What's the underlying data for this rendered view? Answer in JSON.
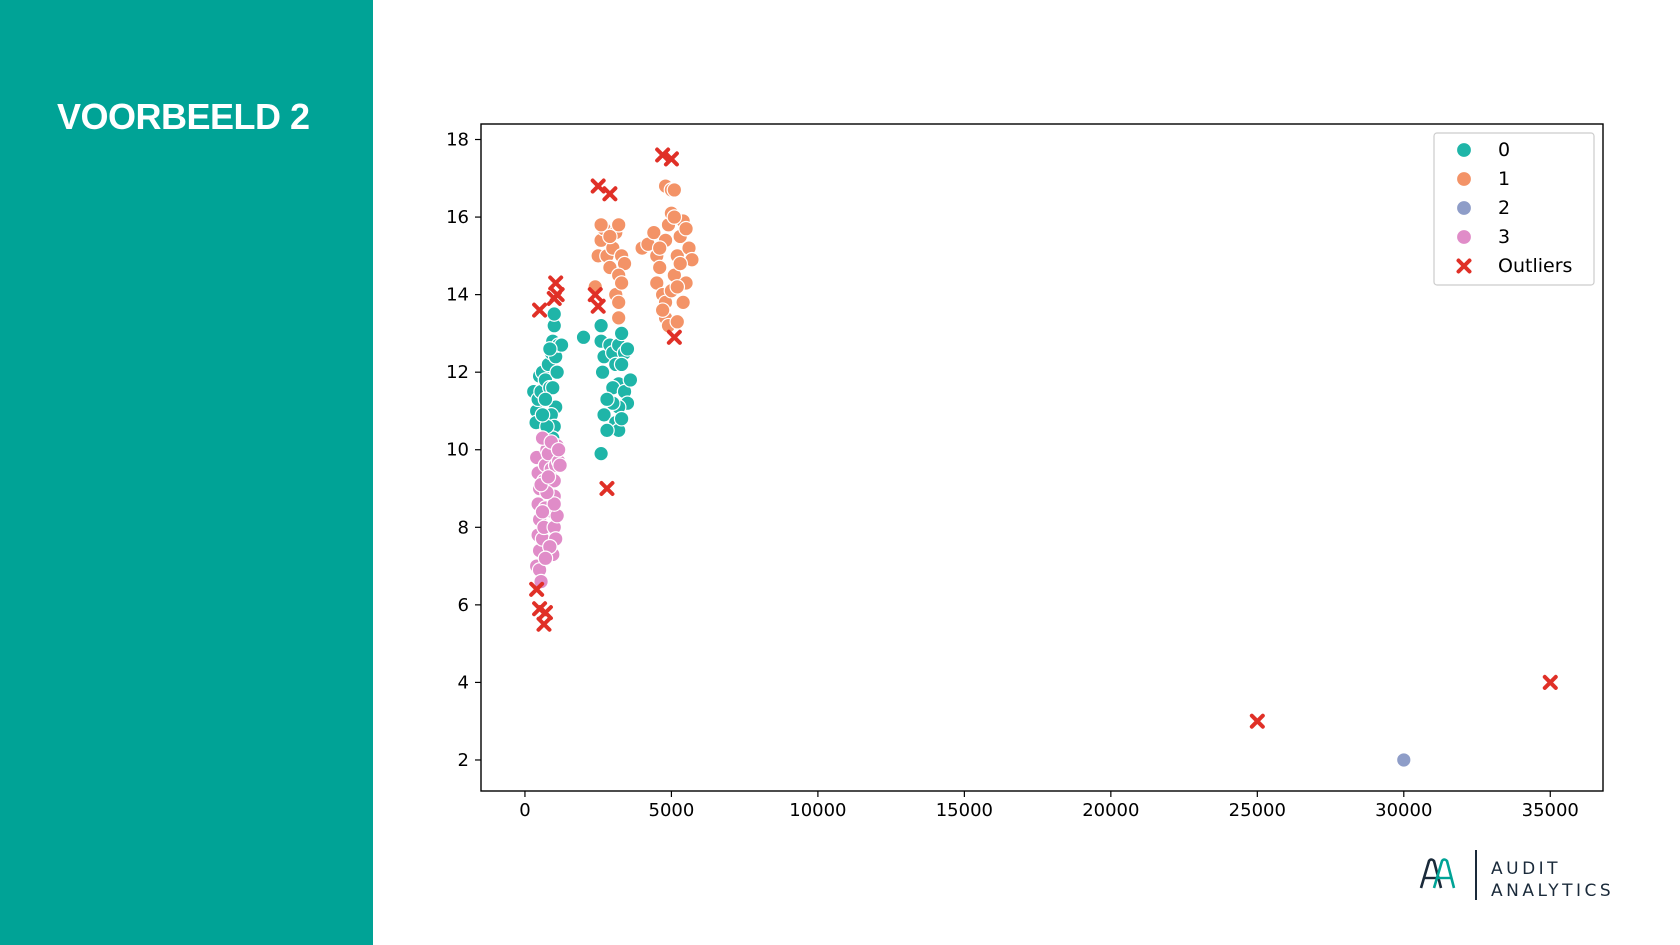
{
  "slide": {
    "title": "VOORBEELD 2"
  },
  "logo": {
    "line1": "AUDIT",
    "line2": "ANALYTICS",
    "colors": {
      "dark": "#1a2a3a",
      "accent": "#00a396"
    }
  },
  "colors": {
    "sidebar": "#00a396",
    "cluster_0": "#1fb5a8",
    "cluster_1": "#f39367",
    "cluster_2": "#8e9dc8",
    "cluster_3": "#e08cc8",
    "outliers": "#e03027"
  },
  "chart_data": {
    "type": "scatter",
    "title": "",
    "xlabel": "",
    "ylabel": "",
    "xlim": [
      -1500,
      36800
    ],
    "ylim": [
      1.2,
      18.4
    ],
    "xticks": [
      "0",
      "5000",
      "10000",
      "15000",
      "20000",
      "25000",
      "30000",
      "35000"
    ],
    "yticks": [
      "2",
      "4",
      "6",
      "8",
      "10",
      "12",
      "14",
      "16",
      "18"
    ],
    "grid": false,
    "legend_position": "top-right",
    "series": [
      {
        "name": "0",
        "marker": "circle",
        "color": "#1fb5a8",
        "points": [
          [
            300,
            11.5
          ],
          [
            400,
            11.0
          ],
          [
            380,
            10.7
          ],
          [
            500,
            11.9
          ],
          [
            450,
            11.3
          ],
          [
            600,
            12.0
          ],
          [
            550,
            11.5
          ],
          [
            700,
            11.8
          ],
          [
            800,
            12.2
          ],
          [
            850,
            11.6
          ],
          [
            900,
            12.5
          ],
          [
            950,
            12.8
          ],
          [
            1000,
            13.2
          ],
          [
            1000,
            13.5
          ],
          [
            1050,
            12.4
          ],
          [
            1100,
            12.0
          ],
          [
            950,
            11.6
          ],
          [
            1050,
            11.1
          ],
          [
            900,
            10.9
          ],
          [
            1000,
            10.6
          ],
          [
            950,
            10.3
          ],
          [
            750,
            10.6
          ],
          [
            600,
            10.9
          ],
          [
            1150,
            12.7
          ],
          [
            1250,
            12.7
          ],
          [
            700,
            11.3
          ],
          [
            850,
            12.6
          ],
          [
            2000,
            12.9
          ],
          [
            2600,
            13.2
          ],
          [
            2600,
            12.8
          ],
          [
            2700,
            12.4
          ],
          [
            2650,
            12.0
          ],
          [
            2900,
            12.7
          ],
          [
            3000,
            12.5
          ],
          [
            3100,
            12.2
          ],
          [
            3200,
            12.7
          ],
          [
            3300,
            13.0
          ],
          [
            3400,
            12.5
          ],
          [
            3500,
            12.6
          ],
          [
            3300,
            12.2
          ],
          [
            3200,
            11.7
          ],
          [
            3000,
            11.6
          ],
          [
            3400,
            11.5
          ],
          [
            3600,
            11.8
          ],
          [
            3500,
            11.2
          ],
          [
            3200,
            11.1
          ],
          [
            3000,
            11.2
          ],
          [
            2800,
            11.3
          ],
          [
            2700,
            10.9
          ],
          [
            3100,
            10.7
          ],
          [
            3200,
            10.5
          ],
          [
            3300,
            10.8
          ],
          [
            2800,
            10.5
          ],
          [
            2600,
            9.9
          ]
        ]
      },
      {
        "name": "1",
        "marker": "circle",
        "color": "#f39367",
        "points": [
          [
            2400,
            14.2
          ],
          [
            2500,
            15.0
          ],
          [
            2600,
            15.4
          ],
          [
            2700,
            15.7
          ],
          [
            2800,
            15.0
          ],
          [
            2900,
            14.7
          ],
          [
            3000,
            15.2
          ],
          [
            3100,
            15.6
          ],
          [
            3200,
            15.8
          ],
          [
            3300,
            15.0
          ],
          [
            3400,
            14.8
          ],
          [
            3200,
            14.5
          ],
          [
            3100,
            14.0
          ],
          [
            3300,
            14.3
          ],
          [
            3200,
            13.8
          ],
          [
            3200,
            13.4
          ],
          [
            2600,
            15.8
          ],
          [
            2900,
            15.5
          ],
          [
            4000,
            15.2
          ],
          [
            4200,
            15.3
          ],
          [
            4400,
            15.6
          ],
          [
            4500,
            15.0
          ],
          [
            4600,
            14.7
          ],
          [
            4500,
            14.3
          ],
          [
            4700,
            14.0
          ],
          [
            4800,
            13.8
          ],
          [
            4800,
            13.4
          ],
          [
            4900,
            13.2
          ],
          [
            4700,
            13.6
          ],
          [
            5000,
            14.1
          ],
          [
            5100,
            14.5
          ],
          [
            5200,
            15.0
          ],
          [
            5300,
            15.5
          ],
          [
            5400,
            15.9
          ],
          [
            5500,
            15.7
          ],
          [
            5600,
            15.2
          ],
          [
            5700,
            14.9
          ],
          [
            5500,
            14.3
          ],
          [
            5400,
            13.8
          ],
          [
            5200,
            13.3
          ],
          [
            4900,
            15.8
          ],
          [
            5000,
            16.1
          ],
          [
            5100,
            16.0
          ],
          [
            4800,
            16.8
          ],
          [
            5000,
            16.7
          ],
          [
            5100,
            16.7
          ],
          [
            4800,
            15.4
          ],
          [
            4600,
            15.2
          ],
          [
            5300,
            14.8
          ],
          [
            5200,
            14.2
          ]
        ]
      },
      {
        "name": "2",
        "marker": "circle",
        "color": "#8e9dc8",
        "points": [
          [
            30000,
            2.0
          ]
        ]
      },
      {
        "name": "3",
        "marker": "circle",
        "color": "#e08cc8",
        "points": [
          [
            400,
            9.8
          ],
          [
            450,
            9.4
          ],
          [
            500,
            9.0
          ],
          [
            450,
            8.6
          ],
          [
            500,
            8.2
          ],
          [
            450,
            7.8
          ],
          [
            500,
            7.4
          ],
          [
            400,
            7.0
          ],
          [
            500,
            6.9
          ],
          [
            550,
            6.6
          ],
          [
            600,
            7.7
          ],
          [
            650,
            8.0
          ],
          [
            700,
            8.5
          ],
          [
            650,
            9.2
          ],
          [
            700,
            9.6
          ],
          [
            750,
            10.0
          ],
          [
            600,
            10.3
          ],
          [
            800,
            9.9
          ],
          [
            900,
            9.5
          ],
          [
            1000,
            9.2
          ],
          [
            1050,
            9.6
          ],
          [
            1100,
            10.1
          ],
          [
            1150,
            9.7
          ],
          [
            1000,
            8.8
          ],
          [
            950,
            8.4
          ],
          [
            1000,
            8.0
          ],
          [
            1100,
            8.3
          ],
          [
            1050,
            7.7
          ],
          [
            950,
            7.3
          ],
          [
            1000,
            8.6
          ],
          [
            850,
            7.5
          ],
          [
            700,
            7.2
          ],
          [
            600,
            8.4
          ],
          [
            750,
            8.9
          ],
          [
            550,
            9.1
          ],
          [
            900,
            10.2
          ],
          [
            1200,
            9.6
          ],
          [
            1150,
            10.0
          ],
          [
            800,
            9.3
          ]
        ]
      },
      {
        "name": "Outliers",
        "marker": "x",
        "color": "#e03027",
        "points": [
          [
            500,
            13.6
          ],
          [
            1000,
            13.9
          ],
          [
            1050,
            14.3
          ],
          [
            1100,
            14.0
          ],
          [
            400,
            6.4
          ],
          [
            500,
            5.9
          ],
          [
            650,
            5.5
          ],
          [
            700,
            5.8
          ],
          [
            2400,
            14.0
          ],
          [
            2500,
            13.7
          ],
          [
            2500,
            16.8
          ],
          [
            2900,
            16.6
          ],
          [
            4700,
            17.6
          ],
          [
            5000,
            17.5
          ],
          [
            5100,
            12.9
          ],
          [
            2800,
            9.0
          ],
          [
            25000,
            3.0
          ],
          [
            35000,
            4.0
          ]
        ]
      }
    ]
  }
}
